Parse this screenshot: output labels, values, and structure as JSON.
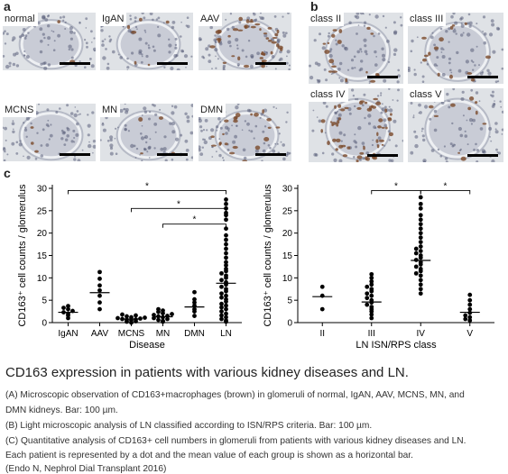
{
  "panel_a": {
    "letter": "a",
    "images": [
      "normal",
      "IgAN",
      "AAV",
      "MCNS",
      "MN",
      "DMN"
    ]
  },
  "panel_b": {
    "letter": "b",
    "images": [
      "class II",
      "class III",
      "class IV",
      "class V"
    ]
  },
  "panel_c": {
    "letter": "c"
  },
  "chart_data": [
    {
      "type": "scatter",
      "xlabel": "Disease",
      "ylabel": "CD163⁺ cell counts / glomerulus",
      "categories": [
        "IgAN",
        "AAV",
        "MCNS",
        "MN",
        "DMN",
        "LN"
      ],
      "ylim": [
        0,
        30
      ],
      "yticks": [
        0,
        5,
        10,
        15,
        20,
        25,
        30
      ],
      "means": [
        2.3,
        6.7,
        0.8,
        1.3,
        3.5,
        8.8
      ],
      "points": [
        [
          1.0,
          1.6,
          2.0,
          2.3,
          2.6,
          3.0,
          3.3,
          3.7
        ],
        [
          3.0,
          4.5,
          6.0,
          7.2,
          8.3,
          9.8,
          11.3
        ],
        [
          0.0,
          0.2,
          0.3,
          0.5,
          0.6,
          0.7,
          0.8,
          0.9,
          1.0,
          1.1,
          1.2,
          1.4,
          1.6,
          1.8
        ],
        [
          0.2,
          0.4,
          0.6,
          0.8,
          1.0,
          1.2,
          1.4,
          1.5,
          1.7,
          1.9,
          2.1,
          2.4,
          2.7,
          3.0
        ],
        [
          1.5,
          2.5,
          3.0,
          3.8,
          4.5,
          5.2,
          6.8
        ],
        [
          0.2,
          0.5,
          0.8,
          1.2,
          1.6,
          2.0,
          2.5,
          3.0,
          3.4,
          3.8,
          4.2,
          4.7,
          5.2,
          5.6,
          6.0,
          6.5,
          7.0,
          7.5,
          8.0,
          8.5,
          9.0,
          9.5,
          10.0,
          10.5,
          11.0,
          11.5,
          12.0,
          12.8,
          13.5,
          14.5,
          15.5,
          16.5,
          17.5,
          18.5,
          19.5,
          21.0,
          23.0,
          24.0,
          24.5,
          25.5,
          26.5,
          27.5
        ]
      ],
      "significance": [
        {
          "from": "IgAN",
          "to": "LN",
          "y": 29.5,
          "label": "*"
        },
        {
          "from": "MCNS",
          "to": "LN",
          "y": 25.5,
          "label": "*"
        },
        {
          "from": "MN",
          "to": "LN",
          "y": 22.0,
          "label": "*"
        }
      ]
    },
    {
      "type": "scatter",
      "xlabel": "LN ISN/RPS class",
      "ylabel": "CD163⁺ cell counts / glomerulus",
      "categories": [
        "II",
        "III",
        "IV",
        "V"
      ],
      "ylim": [
        0,
        30
      ],
      "yticks": [
        0,
        5,
        10,
        15,
        20,
        25,
        30
      ],
      "means": [
        5.8,
        4.6,
        13.9,
        2.3
      ],
      "points": [
        [
          3.0,
          6.0,
          8.0
        ],
        [
          1.0,
          1.8,
          2.5,
          3.0,
          3.5,
          4.0,
          4.5,
          5.0,
          5.5,
          6.0,
          6.5,
          7.0,
          7.5,
          8.0,
          8.5,
          9.2,
          10.0,
          10.8
        ],
        [
          6.5,
          7.5,
          8.5,
          9.5,
          10.5,
          11.0,
          11.5,
          12.0,
          12.5,
          13.0,
          13.5,
          14.0,
          14.5,
          15.0,
          15.5,
          16.0,
          16.5,
          17.0,
          18.0,
          19.0,
          20.0,
          21.0,
          22.0,
          23.0,
          24.0,
          25.5,
          26.5,
          28.0
        ],
        [
          0.5,
          0.8,
          1.2,
          1.6,
          2.2,
          3.0,
          4.0,
          5.0,
          6.2
        ]
      ],
      "significance": [
        {
          "from": "III",
          "to": "IV",
          "y": 29.5,
          "label": "*"
        },
        {
          "from": "IV",
          "to": "V",
          "y": 29.5,
          "label": "*"
        }
      ]
    }
  ],
  "caption": {
    "title": "CD163 expression in patients with various kidney diseases and LN.",
    "lines": [
      "(A) Microscopic observation of CD163+macrophages (brown) in glomeruli of normal, IgAN, AAV, MCNS, MN, and",
      "DMN kidneys. Bar: 100 µm.",
      "(B) Light microscopic analysis of LN classified according to ISN/RPS criteria. Bar: 100 µm.",
      "(C) Quantitative analysis of CD163+ cell numbers in glomeruli from patients with various kidney diseases and LN.",
      "Each patient is represented by a dot and the mean value of each group is shown as a horizontal bar.",
      "(Endo N, Nephrol Dial Transplant 2016)"
    ]
  },
  "colors": {
    "tissue_bg": "#dfe2e6",
    "nuclei": "#5a5f7a",
    "brown_stain": "#7a4a2a",
    "glomerulus": "#c9ccd6"
  }
}
